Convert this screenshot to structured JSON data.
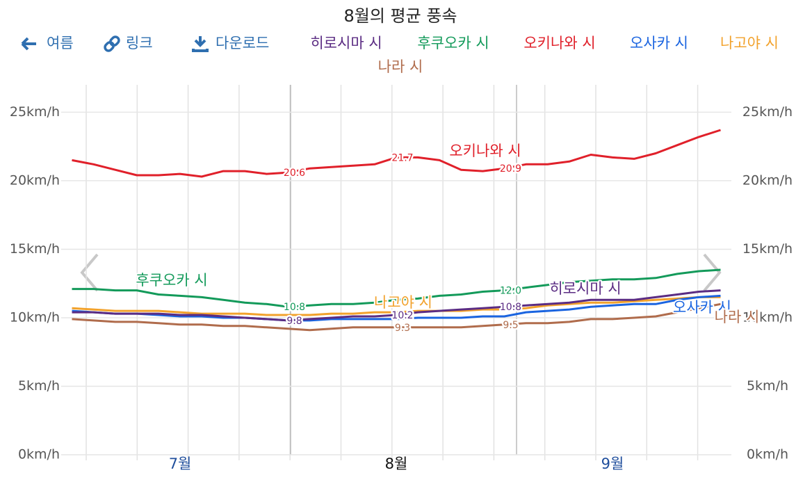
{
  "title": "8월의 평균 풍속",
  "toolbar": [
    "여름",
    "링크",
    "다운로드"
  ],
  "chart_data": {
    "type": "line",
    "categories": [
      null,
      null,
      null,
      null,
      null,
      "7월",
      null,
      null,
      null,
      null,
      null,
      null,
      null,
      null,
      null,
      "8월",
      null,
      null,
      null,
      null,
      null,
      null,
      null,
      null,
      null,
      "9월",
      null,
      null,
      null,
      null,
      null
    ],
    "ylim": [
      0,
      27
    ],
    "yticks": [
      {
        "value": 0,
        "label": "0km/h"
      },
      {
        "value": 5,
        "label": "5km/h"
      },
      {
        "value": 10,
        "label": "10km/h"
      },
      {
        "value": 15,
        "label": "15km/h"
      },
      {
        "value": 20,
        "label": "20km/h"
      },
      {
        "value": 25,
        "label": "25km/h"
      }
    ],
    "grid": true,
    "series": [
      {
        "name": "히로시마 시",
        "color": "#5b2c83",
        "values": [
          10.4,
          10.4,
          10.3,
          10.3,
          10.3,
          10.2,
          10.2,
          10.1,
          10.0,
          9.9,
          9.8,
          9.9,
          10.0,
          10.1,
          10.1,
          10.2,
          10.4,
          10.5,
          10.6,
          10.7,
          10.8,
          10.9,
          11.0,
          11.1,
          11.3,
          11.3,
          11.3,
          11.5,
          11.7,
          11.9,
          12.0
        ],
        "value_labels": [
          null,
          null,
          null,
          null,
          null,
          null,
          null,
          null,
          null,
          null,
          "9.8",
          null,
          null,
          null,
          null,
          "10.2",
          null,
          null,
          null,
          null,
          "10.8",
          null,
          null,
          null,
          null,
          null,
          null,
          null,
          null,
          null,
          null
        ]
      },
      {
        "name": "후쿠오카 시",
        "color": "#139a5a",
        "values": [
          12.1,
          12.1,
          12.0,
          12.0,
          11.7,
          11.6,
          11.5,
          11.3,
          11.1,
          11.0,
          10.8,
          10.9,
          11.0,
          11.0,
          11.1,
          11.3,
          11.4,
          11.6,
          11.7,
          11.9,
          12.0,
          12.2,
          12.4,
          12.6,
          12.7,
          12.8,
          12.8,
          12.9,
          13.2,
          13.4,
          13.5
        ],
        "value_labels": [
          null,
          null,
          null,
          null,
          null,
          null,
          null,
          null,
          null,
          null,
          "10.8",
          null,
          null,
          null,
          null,
          null,
          null,
          null,
          null,
          null,
          "12.0",
          null,
          null,
          null,
          null,
          null,
          null,
          null,
          null,
          null,
          null
        ]
      },
      {
        "name": "오키나와 시",
        "color": "#e0202a",
        "values": [
          21.5,
          21.2,
          20.8,
          20.4,
          20.4,
          20.5,
          20.3,
          20.7,
          20.7,
          20.5,
          20.6,
          20.9,
          21.0,
          21.1,
          21.2,
          21.7,
          21.7,
          21.5,
          20.8,
          20.7,
          20.9,
          21.2,
          21.2,
          21.4,
          21.9,
          21.7,
          21.6,
          22.0,
          22.6,
          23.2,
          23.7
        ],
        "value_labels": [
          null,
          null,
          null,
          null,
          null,
          null,
          null,
          null,
          null,
          null,
          "20.6",
          null,
          null,
          null,
          null,
          "21.7",
          null,
          null,
          null,
          null,
          "20.9",
          null,
          null,
          null,
          null,
          null,
          null,
          null,
          null,
          null,
          null
        ]
      },
      {
        "name": "오사카 시",
        "color": "#1a64e0",
        "values": [
          10.5,
          10.4,
          10.3,
          10.3,
          10.2,
          10.1,
          10.1,
          10.0,
          10.0,
          9.9,
          9.8,
          9.8,
          9.9,
          9.9,
          9.9,
          9.9,
          10.0,
          10.0,
          10.0,
          10.1,
          10.1,
          10.4,
          10.5,
          10.6,
          10.8,
          10.9,
          11.0,
          11.0,
          11.3,
          11.5,
          11.6
        ]
      },
      {
        "name": "나고야 시",
        "color": "#f2a22c",
        "values": [
          10.7,
          10.6,
          10.5,
          10.5,
          10.5,
          10.4,
          10.3,
          10.3,
          10.3,
          10.2,
          10.2,
          10.2,
          10.3,
          10.3,
          10.4,
          10.4,
          10.5,
          10.5,
          10.5,
          10.6,
          10.6,
          10.7,
          10.9,
          11.0,
          11.1,
          11.1,
          11.2,
          11.3,
          11.4,
          11.5,
          11.5
        ]
      },
      {
        "name": "나라 시",
        "color": "#b06c4c",
        "values": [
          9.9,
          9.8,
          9.7,
          9.7,
          9.6,
          9.5,
          9.5,
          9.4,
          9.4,
          9.3,
          9.2,
          9.1,
          9.2,
          9.3,
          9.3,
          9.3,
          9.3,
          9.3,
          9.3,
          9.4,
          9.5,
          9.6,
          9.6,
          9.7,
          9.9,
          9.9,
          10.0,
          10.1,
          10.4,
          10.7,
          11.0
        ],
        "value_labels": [
          null,
          null,
          null,
          null,
          null,
          null,
          null,
          null,
          null,
          null,
          null,
          null,
          null,
          null,
          null,
          "9.3",
          null,
          null,
          null,
          null,
          "9.5",
          null,
          null,
          null,
          null,
          null,
          null,
          null,
          null,
          null,
          null
        ]
      }
    ]
  }
}
